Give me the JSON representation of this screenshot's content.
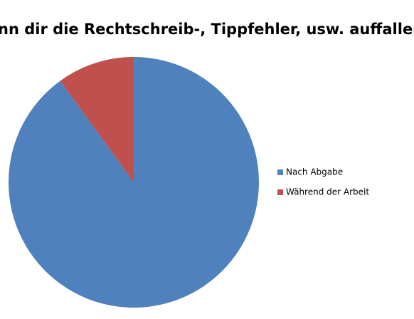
{
  "chart_data": {
    "type": "pie",
    "title": "Wann dir die Rechtschreib-, Tippfehler, usw. auffallen:",
    "categories": [
      "Nach Abgabe",
      "Während der Arbeit"
    ],
    "values": [
      90,
      10
    ],
    "colors": [
      "#4f81bd",
      "#c0504d"
    ],
    "legend": "right"
  }
}
